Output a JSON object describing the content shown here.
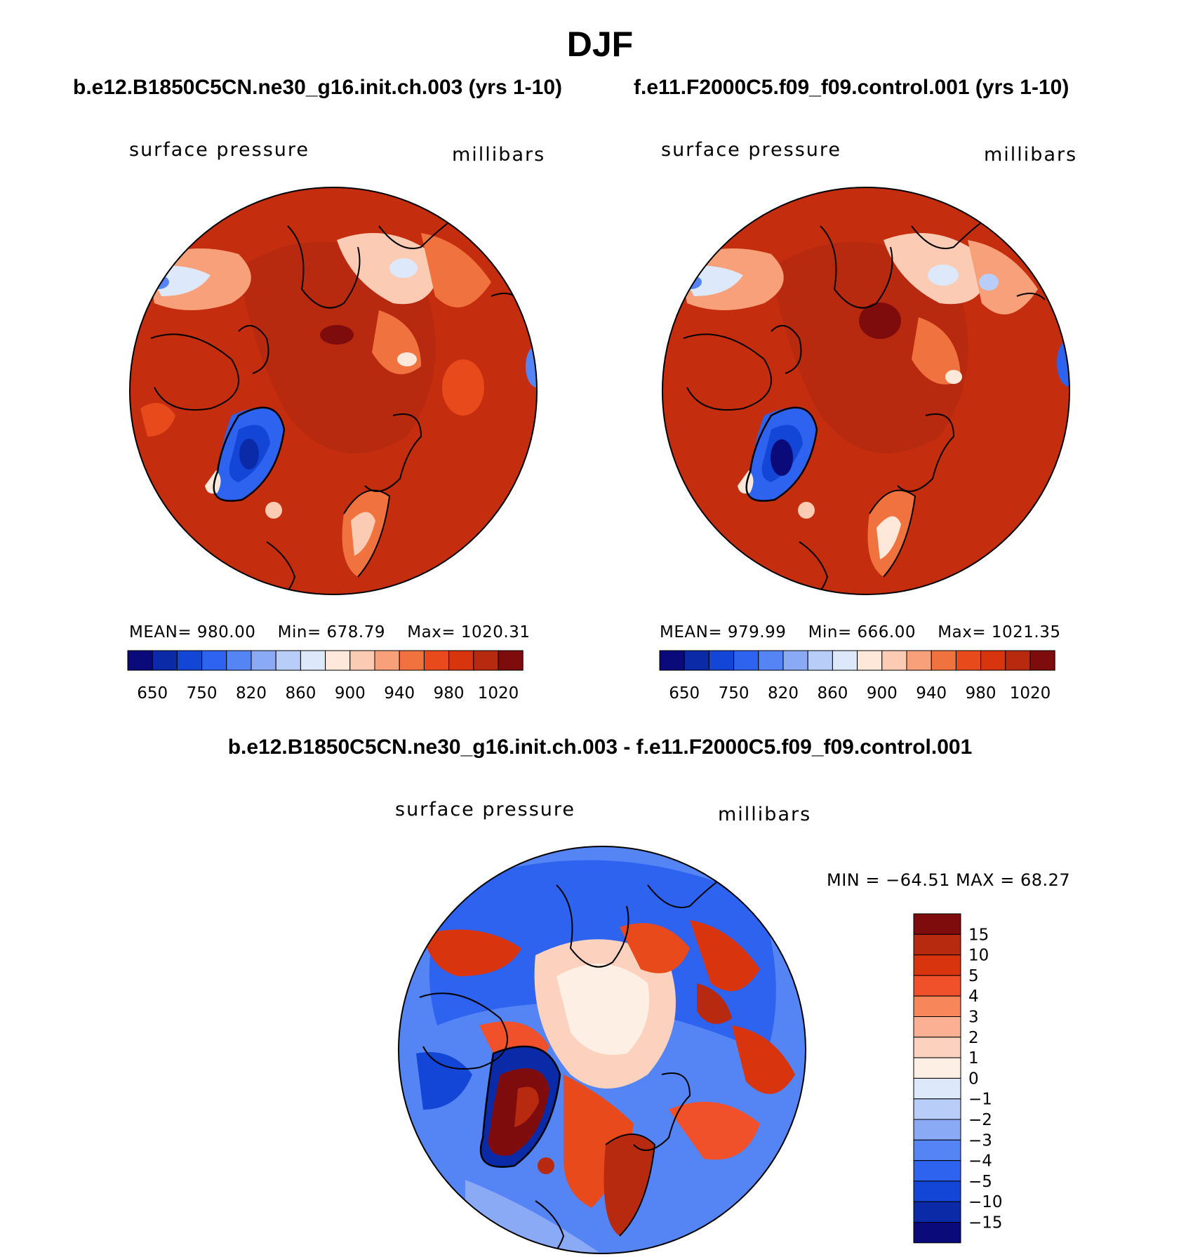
{
  "title": "DJF",
  "panels": {
    "left_case_title": "b.e12.B1850C5CN.ne30_g16.init.ch.003 (yrs 1-10)",
    "right_case_title": "f.e11.F2000C5.f09_f09.control.001 (yrs 1-10)",
    "diff_title": "b.e12.B1850C5CN.ne30_g16.init.ch.003 - f.e11.F2000C5.f09_f09.control.001"
  },
  "chart_data": [
    {
      "type": "heatmap",
      "name": "panel-left",
      "variable": "surface pressure",
      "units": "millibars",
      "stats": {
        "mean": "MEAN=  980.00",
        "min": "Min=  678.79",
        "max": "Max=  1020.31"
      },
      "colorbar": {
        "orientation": "horizontal",
        "tick_labels": [
          "650",
          "750",
          "820",
          "860",
          "900",
          "940",
          "980",
          "1020"
        ],
        "colors": [
          "#0a0a7a",
          "#0a2aa8",
          "#1346d6",
          "#2e63ef",
          "#5585f5",
          "#8aaaf5",
          "#b8cdf8",
          "#dde8fb",
          "#fde8da",
          "#fbcbb3",
          "#f7a07a",
          "#f0733f",
          "#e84a1c",
          "#d8340d",
          "#b82a10",
          "#7f0c0c"
        ]
      }
    },
    {
      "type": "heatmap",
      "name": "panel-right",
      "variable": "surface pressure",
      "units": "millibars",
      "stats": {
        "mean": "MEAN=  979.99",
        "min": "Min=  666.00",
        "max": "Max=  1021.35"
      },
      "colorbar": {
        "orientation": "horizontal",
        "tick_labels": [
          "650",
          "750",
          "820",
          "860",
          "900",
          "940",
          "980",
          "1020"
        ],
        "colors": [
          "#0a0a7a",
          "#0a2aa8",
          "#1346d6",
          "#2e63ef",
          "#5585f5",
          "#8aaaf5",
          "#b8cdf8",
          "#dde8fb",
          "#fde8da",
          "#fbcbb3",
          "#f7a07a",
          "#f0733f",
          "#e84a1c",
          "#d8340d",
          "#b82a10",
          "#7f0c0c"
        ]
      }
    },
    {
      "type": "heatmap",
      "name": "panel-diff",
      "variable": "surface pressure",
      "units": "millibars",
      "stats": {
        "minmax": "MIN = −64.51  MAX =   68.27"
      },
      "colorbar": {
        "orientation": "vertical",
        "tick_labels": [
          "15",
          "10",
          "5",
          "4",
          "3",
          "2",
          "1",
          "0",
          "−1",
          "−2",
          "−3",
          "−4",
          "−5",
          "−10",
          "−15"
        ],
        "colors": [
          "#7f0c0c",
          "#b82a10",
          "#d8340d",
          "#f0502a",
          "#f7865a",
          "#fbb093",
          "#fcd2bf",
          "#fdefe3",
          "#dde8fb",
          "#b8cdf8",
          "#8aaaf5",
          "#5585f5",
          "#2e63ef",
          "#1346d6",
          "#0a2aa8",
          "#0a0a7a"
        ]
      }
    }
  ]
}
